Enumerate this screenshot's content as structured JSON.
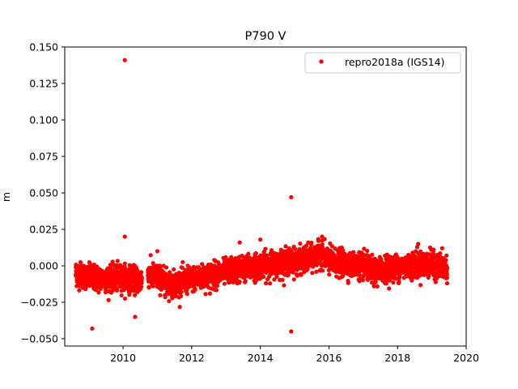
{
  "chart_data": {
    "type": "scatter",
    "title": "P790 V",
    "xlabel": "",
    "ylabel": "m",
    "xlim": [
      2008.3,
      2020.0
    ],
    "ylim": [
      -0.055,
      0.15
    ],
    "xticks": [
      2010,
      2012,
      2014,
      2016,
      2018,
      2020
    ],
    "yticks": [
      -0.05,
      -0.025,
      0.0,
      0.025,
      0.05,
      0.075,
      0.1,
      0.125,
      0.15
    ],
    "ytick_labels": [
      "−0.050",
      "−0.025",
      "0.000",
      "0.025",
      "0.050",
      "0.075",
      "0.100",
      "0.125",
      "0.150"
    ],
    "grid": false,
    "legend": "upper-right",
    "series": [
      {
        "name": "repro2018a (IGS14)",
        "color": "#ff0000",
        "marker": "circle",
        "trend": [
          [
            2008.62,
            -0.005
          ],
          [
            2009.0,
            -0.008
          ],
          [
            2009.5,
            -0.009
          ],
          [
            2010.0,
            -0.008
          ],
          [
            2010.5,
            -0.01
          ],
          [
            2010.75,
            -0.006
          ],
          [
            2011.0,
            -0.008
          ],
          [
            2011.4,
            -0.013
          ],
          [
            2011.7,
            -0.011
          ],
          [
            2012.0,
            -0.009
          ],
          [
            2012.5,
            -0.007
          ],
          [
            2013.0,
            -0.004
          ],
          [
            2013.5,
            -0.002
          ],
          [
            2014.0,
            0.0
          ],
          [
            2014.5,
            0.002
          ],
          [
            2015.0,
            0.003
          ],
          [
            2015.5,
            0.005
          ],
          [
            2015.8,
            0.008
          ],
          [
            2016.0,
            0.003
          ],
          [
            2016.5,
            0.001
          ],
          [
            2017.0,
            0.0
          ],
          [
            2017.3,
            -0.004
          ],
          [
            2017.6,
            -0.002
          ],
          [
            2018.0,
            -0.001
          ],
          [
            2018.5,
            0.001
          ],
          [
            2019.0,
            0.001
          ],
          [
            2019.45,
            -0.002
          ]
        ],
        "gaps": [
          [
            2010.55,
            2010.72
          ]
        ],
        "outliers": [
          [
            2010.05,
            0.141
          ],
          [
            2014.9,
            0.047
          ],
          [
            2014.9,
            -0.045
          ],
          [
            2009.1,
            -0.043
          ],
          [
            2010.35,
            -0.035
          ],
          [
            2010.05,
            0.02
          ],
          [
            2015.8,
            0.02
          ],
          [
            2013.4,
            0.016
          ],
          [
            2014.0,
            0.018
          ],
          [
            2018.6,
            0.015
          ],
          [
            2019.3,
            0.012
          ],
          [
            2011.0,
            0.01
          ]
        ]
      }
    ]
  }
}
